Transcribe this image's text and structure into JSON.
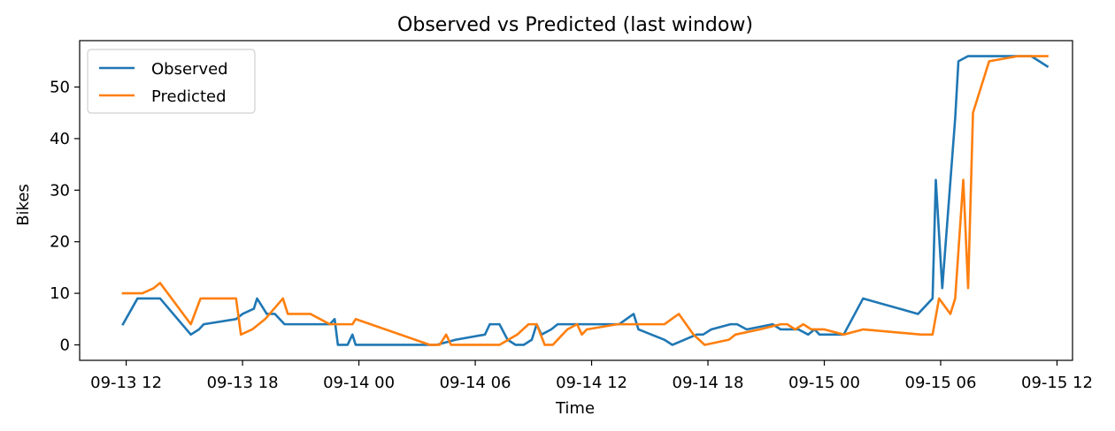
{
  "chart_data": {
    "type": "line",
    "title": "Observed vs Predicted (last window)",
    "xlabel": "Time",
    "ylabel": "Bikes",
    "xlim": [
      "2024-09-13 09:36",
      "2024-09-15 12:48"
    ],
    "ylim": [
      -3,
      59
    ],
    "xticks": [
      {
        "x": "2024-09-13 12:00",
        "label": "09-13 12"
      },
      {
        "x": "2024-09-13 18:00",
        "label": "09-13 18"
      },
      {
        "x": "2024-09-14 00:00",
        "label": "09-14 00"
      },
      {
        "x": "2024-09-14 06:00",
        "label": "09-14 06"
      },
      {
        "x": "2024-09-14 12:00",
        "label": "09-14 12"
      },
      {
        "x": "2024-09-14 18:00",
        "label": "09-14 18"
      },
      {
        "x": "2024-09-15 00:00",
        "label": "09-15 00"
      },
      {
        "x": "2024-09-15 06:00",
        "label": "09-15 06"
      },
      {
        "x": "2024-09-15 12:00",
        "label": "09-15 12"
      }
    ],
    "yticks": [
      0,
      10,
      20,
      30,
      40,
      50
    ],
    "grid": false,
    "legend": "upper left",
    "series": [
      {
        "name": "Observed",
        "color": "#1f77b4",
        "points": [
          [
            "2024-09-13 11:50",
            4
          ],
          [
            "2024-09-13 12:35",
            9
          ],
          [
            "2024-09-13 13:45",
            9
          ],
          [
            "2024-09-13 15:20",
            2
          ],
          [
            "2024-09-13 15:45",
            3
          ],
          [
            "2024-09-13 16:00",
            4
          ],
          [
            "2024-09-13 17:40",
            5
          ],
          [
            "2024-09-13 18:00",
            6
          ],
          [
            "2024-09-13 18:35",
            7
          ],
          [
            "2024-09-13 18:45",
            9
          ],
          [
            "2024-09-13 19:15",
            6
          ],
          [
            "2024-09-13 19:40",
            6
          ],
          [
            "2024-09-13 20:10",
            4
          ],
          [
            "2024-09-13 22:30",
            4
          ],
          [
            "2024-09-13 22:45",
            5
          ],
          [
            "2024-09-13 22:55",
            0
          ],
          [
            "2024-09-13 23:25",
            0
          ],
          [
            "2024-09-13 23:40",
            2
          ],
          [
            "2024-09-13 23:50",
            0
          ],
          [
            "2024-09-14 04:00",
            0
          ],
          [
            "2024-09-14 05:00",
            1
          ],
          [
            "2024-09-14 06:30",
            2
          ],
          [
            "2024-09-14 06:45",
            4
          ],
          [
            "2024-09-14 07:15",
            4
          ],
          [
            "2024-09-14 07:40",
            1
          ],
          [
            "2024-09-14 08:05",
            0
          ],
          [
            "2024-09-14 08:30",
            0
          ],
          [
            "2024-09-14 08:55",
            1
          ],
          [
            "2024-09-14 09:10",
            4
          ],
          [
            "2024-09-14 09:25",
            2
          ],
          [
            "2024-09-14 09:55",
            3
          ],
          [
            "2024-09-14 10:15",
            4
          ],
          [
            "2024-09-14 13:25",
            4
          ],
          [
            "2024-09-14 14:10",
            6
          ],
          [
            "2024-09-14 14:25",
            3
          ],
          [
            "2024-09-14 15:05",
            2
          ],
          [
            "2024-09-14 15:45",
            1
          ],
          [
            "2024-09-14 16:10",
            0
          ],
          [
            "2024-09-14 17:25",
            2
          ],
          [
            "2024-09-14 17:45",
            2
          ],
          [
            "2024-09-14 18:10",
            3
          ],
          [
            "2024-09-14 19:10",
            4
          ],
          [
            "2024-09-14 19:30",
            4
          ],
          [
            "2024-09-14 20:00",
            3
          ],
          [
            "2024-09-14 21:20",
            4
          ],
          [
            "2024-09-14 21:45",
            3
          ],
          [
            "2024-09-14 22:40",
            3
          ],
          [
            "2024-09-14 23:10",
            2
          ],
          [
            "2024-09-14 23:30",
            3
          ],
          [
            "2024-09-14 23:45",
            2
          ],
          [
            "2024-09-15 01:00",
            2
          ],
          [
            "2024-09-15 02:00",
            9
          ],
          [
            "2024-09-15 04:50",
            6
          ],
          [
            "2024-09-15 05:35",
            9
          ],
          [
            "2024-09-15 05:45",
            32
          ],
          [
            "2024-09-15 06:05",
            11
          ],
          [
            "2024-09-15 06:45",
            44
          ],
          [
            "2024-09-15 06:55",
            55
          ],
          [
            "2024-09-15 07:25",
            56
          ],
          [
            "2024-09-15 10:40",
            56
          ],
          [
            "2024-09-15 11:30",
            54
          ]
        ]
      },
      {
        "name": "Predicted",
        "color": "#ff7f0e",
        "points": [
          [
            "2024-09-13 11:50",
            10
          ],
          [
            "2024-09-13 12:30",
            10
          ],
          [
            "2024-09-13 12:50",
            10
          ],
          [
            "2024-09-13 13:25",
            11
          ],
          [
            "2024-09-13 13:45",
            12
          ],
          [
            "2024-09-13 15:20",
            4
          ],
          [
            "2024-09-13 15:50",
            9
          ],
          [
            "2024-09-13 17:40",
            9
          ],
          [
            "2024-09-13 17:55",
            2
          ],
          [
            "2024-09-13 18:30",
            3
          ],
          [
            "2024-09-13 18:50",
            4
          ],
          [
            "2024-09-13 19:10",
            5
          ],
          [
            "2024-09-13 20:05",
            9
          ],
          [
            "2024-09-13 20:20",
            6
          ],
          [
            "2024-09-13 21:30",
            6
          ],
          [
            "2024-09-13 22:30",
            4
          ],
          [
            "2024-09-13 23:40",
            4
          ],
          [
            "2024-09-13 23:50",
            5
          ],
          [
            "2024-09-14 03:40",
            0
          ],
          [
            "2024-09-14 04:10",
            0
          ],
          [
            "2024-09-14 04:30",
            2
          ],
          [
            "2024-09-14 04:45",
            0
          ],
          [
            "2024-09-14 07:15",
            0
          ],
          [
            "2024-09-14 08:10",
            2
          ],
          [
            "2024-09-14 08:45",
            4
          ],
          [
            "2024-09-14 09:10",
            4
          ],
          [
            "2024-09-14 09:35",
            0
          ],
          [
            "2024-09-14 10:00",
            0
          ],
          [
            "2024-09-14 10:45",
            3
          ],
          [
            "2024-09-14 11:15",
            4
          ],
          [
            "2024-09-14 11:30",
            2
          ],
          [
            "2024-09-14 11:45",
            3
          ],
          [
            "2024-09-14 13:20",
            4
          ],
          [
            "2024-09-14 15:45",
            4
          ],
          [
            "2024-09-14 16:30",
            6
          ],
          [
            "2024-09-14 17:15",
            2
          ],
          [
            "2024-09-14 17:50",
            0
          ],
          [
            "2024-09-14 19:05",
            1
          ],
          [
            "2024-09-14 19:25",
            2
          ],
          [
            "2024-09-14 20:40",
            3
          ],
          [
            "2024-09-14 21:45",
            4
          ],
          [
            "2024-09-14 22:05",
            4
          ],
          [
            "2024-09-14 22:30",
            3
          ],
          [
            "2024-09-14 22:55",
            4
          ],
          [
            "2024-09-14 23:20",
            3
          ],
          [
            "2024-09-15 00:00",
            3
          ],
          [
            "2024-09-15 01:00",
            2
          ],
          [
            "2024-09-15 02:00",
            3
          ],
          [
            "2024-09-15 05:00",
            2
          ],
          [
            "2024-09-15 05:35",
            2
          ],
          [
            "2024-09-15 05:55",
            9
          ],
          [
            "2024-09-15 06:30",
            6
          ],
          [
            "2024-09-15 06:45",
            9
          ],
          [
            "2024-09-15 07:10",
            32
          ],
          [
            "2024-09-15 07:25",
            11
          ],
          [
            "2024-09-15 07:40",
            45
          ],
          [
            "2024-09-15 08:30",
            55
          ],
          [
            "2024-09-15 10:00",
            56
          ],
          [
            "2024-09-15 11:30",
            56
          ]
        ]
      }
    ]
  }
}
